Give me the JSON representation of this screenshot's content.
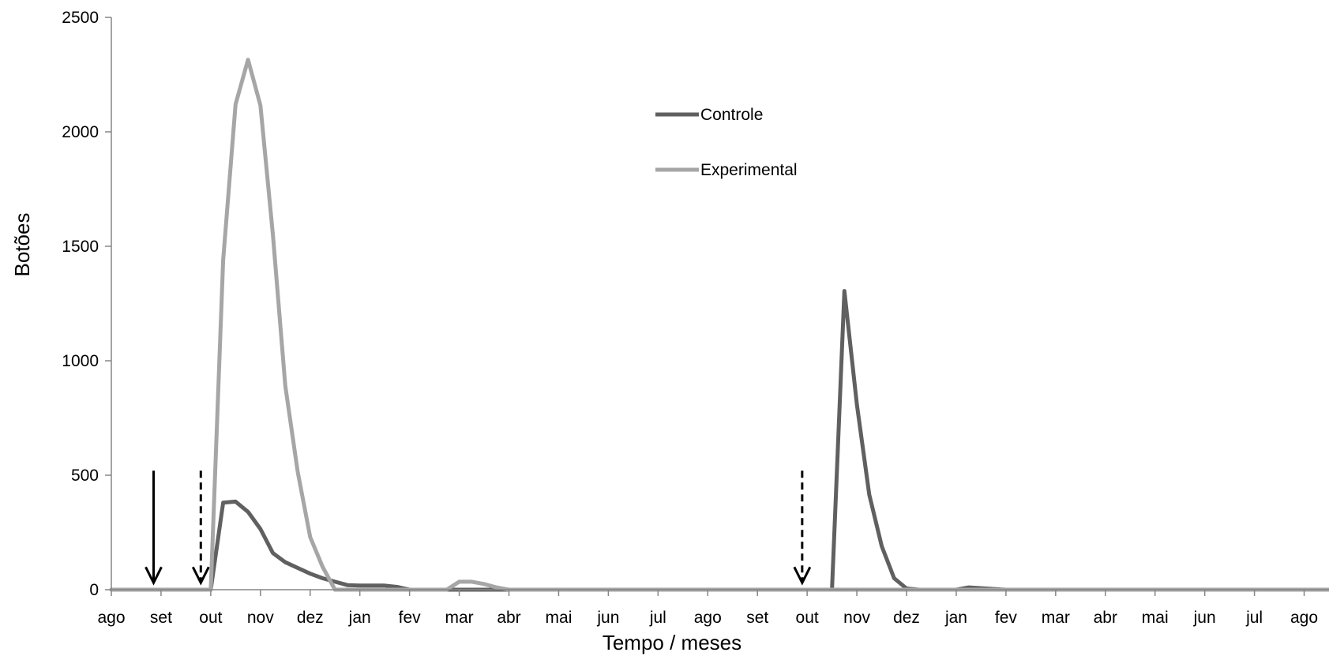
{
  "chart_data": {
    "type": "line",
    "title": "",
    "xlabel": "Tempo / meses",
    "ylabel": "Botões",
    "ylim": [
      0,
      2500
    ],
    "yticks": [
      0,
      500,
      1000,
      1500,
      2000,
      2500
    ],
    "x_unit": "month index (0 = first 'ago')",
    "xlim": [
      0,
      24.5
    ],
    "xtick_labels": [
      "ago",
      "set",
      "out",
      "nov",
      "dez",
      "jan",
      "fev",
      "mar",
      "abr",
      "mai",
      "jun",
      "jul",
      "ago",
      "set",
      "out",
      "nov",
      "dez",
      "jan",
      "fev",
      "mar",
      "abr",
      "mai",
      "jun",
      "jul",
      "ago"
    ],
    "grid": false,
    "legend": {
      "placement": "top-center",
      "entries": [
        "Controle",
        "Experimental"
      ]
    },
    "series": [
      {
        "name": "Controle",
        "color": "#606060",
        "x": [
          0,
          2.0,
          2.25,
          2.5,
          2.75,
          3.0,
          3.25,
          3.5,
          4.0,
          4.25,
          4.5,
          4.75,
          5.0,
          5.5,
          5.75,
          6.0,
          7.0,
          8.0,
          14.0,
          14.5,
          14.75,
          15.0,
          15.25,
          15.5,
          15.75,
          16.0,
          16.25,
          16.5,
          17.0,
          17.25,
          18.0,
          24.5
        ],
        "y": [
          0,
          0,
          380,
          385,
          340,
          265,
          160,
          120,
          70,
          50,
          35,
          20,
          18,
          18,
          12,
          0,
          0,
          0,
          0,
          0,
          1305,
          810,
          415,
          190,
          50,
          5,
          0,
          0,
          0,
          10,
          0,
          0
        ]
      },
      {
        "name": "Experimental",
        "color": "#a6a6a6",
        "x": [
          0,
          2.0,
          2.25,
          2.5,
          2.75,
          3.0,
          3.25,
          3.5,
          3.75,
          4.0,
          4.25,
          4.5,
          4.75,
          5.0,
          6.0,
          6.75,
          7.0,
          7.25,
          7.5,
          7.75,
          8.0,
          24.5
        ],
        "y": [
          0,
          0,
          1440,
          2120,
          2315,
          2115,
          1550,
          890,
          515,
          230,
          100,
          0,
          0,
          0,
          0,
          0,
          35,
          35,
          25,
          10,
          0,
          0
        ]
      }
    ],
    "annotations": [
      {
        "type": "solid-arrow",
        "x": 0.85
      },
      {
        "type": "dashed-arrow",
        "x": 1.8
      },
      {
        "type": "dashed-arrow",
        "x": 13.9
      }
    ]
  }
}
